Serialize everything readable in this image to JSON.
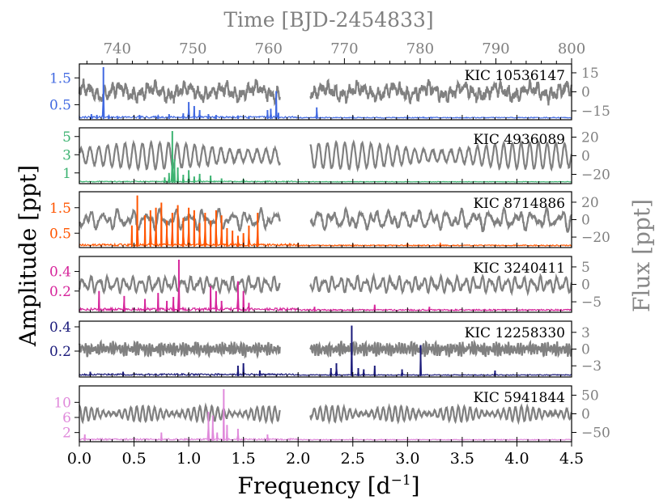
{
  "figure": {
    "top_axis_label": "Time [BJD-2454833]",
    "bottom_axis_label_main": "Frequency [d",
    "bottom_axis_label_sup": "−1",
    "bottom_axis_label_end": "]",
    "left_axis_label": "Amplitude [ppt]",
    "right_axis_label": "Flux [ppt]",
    "left_label_color": "#000000",
    "right_label_color": "#888888",
    "time_color": "#808080"
  },
  "chart_data": {
    "type": "line",
    "title": "",
    "x_frequency": {
      "label": "Frequency [d−1]",
      "range": [
        0.0,
        4.5
      ],
      "ticks": [
        "0.0",
        "0.5",
        "1.0",
        "1.5",
        "2.0",
        "2.5",
        "3.0",
        "3.5",
        "4.0",
        "4.5"
      ]
    },
    "x_time": {
      "label": "Time [BJD-2454833]",
      "range": [
        735,
        800
      ],
      "ticks": [
        "740",
        "750",
        "760",
        "770",
        "780",
        "790",
        "800"
      ],
      "gap": [
        761.5,
        765.5
      ]
    },
    "panels": [
      {
        "star": "KIC 10536147",
        "color": "#4169e1",
        "amp_ticks": [
          "1.5",
          "0.5"
        ],
        "amp_tick_values": [
          1.5,
          0.5
        ],
        "amp_range": [
          0,
          1.9
        ],
        "flux_ticks": [
          "15",
          "0",
          "−15"
        ],
        "flux_tick_values": [
          15,
          0,
          -15
        ],
        "flux_range": [
          -22,
          22
        ],
        "peaks": [
          [
            0.22,
            1.9
          ],
          [
            0.11,
            0.15
          ],
          [
            0.16,
            0.12
          ],
          [
            0.27,
            0.1
          ],
          [
            0.35,
            0.08
          ],
          [
            0.55,
            0.12
          ],
          [
            0.72,
            0.1
          ],
          [
            0.82,
            0.15
          ],
          [
            0.95,
            0.18
          ],
          [
            1.0,
            0.6
          ],
          [
            1.05,
            0.45
          ],
          [
            1.1,
            0.3
          ],
          [
            1.18,
            0.15
          ],
          [
            1.25,
            0.12
          ],
          [
            1.45,
            0.1
          ],
          [
            1.55,
            0.08
          ],
          [
            1.72,
            0.3
          ],
          [
            1.75,
            0.35
          ],
          [
            1.8,
            1.0
          ],
          [
            1.82,
            0.2
          ],
          [
            2.17,
            0.4
          ],
          [
            2.5,
            0.08
          ],
          [
            3.0,
            0.06
          ]
        ],
        "noise": 0.05,
        "light_curve": {
          "freqs": [
            1.05,
            1.8,
            0.22
          ],
          "amps": [
            3,
            2,
            3
          ],
          "noise": 3,
          "offset": 0
        }
      },
      {
        "star": "KIC 4936089",
        "color": "#3cb371",
        "amp_ticks": [
          "5",
          "3",
          "1"
        ],
        "amp_tick_values": [
          5,
          3,
          1
        ],
        "amp_range": [
          0,
          5.6
        ],
        "flux_ticks": [
          "20",
          "0",
          "−20"
        ],
        "flux_tick_values": [
          20,
          0,
          -20
        ],
        "flux_range": [
          -30,
          30
        ],
        "peaks": [
          [
            0.85,
            5.6
          ],
          [
            0.87,
            2.5
          ],
          [
            0.9,
            1.6
          ],
          [
            0.82,
            1.0
          ],
          [
            0.95,
            0.8
          ],
          [
            1.0,
            1.3
          ],
          [
            1.05,
            0.6
          ],
          [
            1.1,
            0.9
          ],
          [
            1.2,
            0.7
          ],
          [
            1.3,
            0.4
          ],
          [
            1.5,
            0.3
          ],
          [
            0.78,
            0.5
          ]
        ],
        "noise": 0.08,
        "light_curve": {
          "freqs": [
            0.86,
            0.9
          ],
          "amps": [
            10,
            4
          ],
          "noise": 1,
          "offset": 0
        }
      },
      {
        "star": "KIC 8714886",
        "color": "#ff5500",
        "amp_ticks": [
          "1.5",
          "0.5"
        ],
        "amp_tick_values": [
          1.5,
          0.5
        ],
        "amp_range": [
          0,
          2.0
        ],
        "flux_ticks": [
          "20",
          "0",
          "−20"
        ],
        "flux_tick_values": [
          20,
          0,
          -20
        ],
        "flux_range": [
          -32,
          32
        ],
        "peaks": [
          [
            0.48,
            0.8
          ],
          [
            0.53,
            1.98
          ],
          [
            0.6,
            1.2
          ],
          [
            0.65,
            1.4
          ],
          [
            0.7,
            1.5
          ],
          [
            0.75,
            1.7
          ],
          [
            0.8,
            1.0
          ],
          [
            0.85,
            1.3
          ],
          [
            0.9,
            1.6
          ],
          [
            0.95,
            1.1
          ],
          [
            1.0,
            1.5
          ],
          [
            1.05,
            1.4
          ],
          [
            1.1,
            0.9
          ],
          [
            1.15,
            1.3
          ],
          [
            1.2,
            1.0
          ],
          [
            1.25,
            1.4
          ],
          [
            1.3,
            1.2
          ],
          [
            1.35,
            0.7
          ],
          [
            1.4,
            0.6
          ],
          [
            1.5,
            0.5
          ],
          [
            1.55,
            0.8
          ],
          [
            1.63,
            1.3
          ],
          [
            1.45,
            0.4
          ],
          [
            2.0,
            0.12
          ],
          [
            2.5,
            0.08
          ],
          [
            3.0,
            0.1
          ],
          [
            3.3,
            0.1
          ]
        ],
        "noise": 0.06,
        "light_curve": {
          "freqs": [
            0.53,
            0.9,
            1.25
          ],
          "amps": [
            6,
            4,
            3
          ],
          "noise": 2,
          "offset": 0
        }
      },
      {
        "star": "KIC 3240411",
        "color": "#d6259b",
        "amp_ticks": [
          "0.4",
          "0.2"
        ],
        "amp_tick_values": [
          0.4,
          0.2
        ],
        "amp_range": [
          0,
          0.52
        ],
        "flux_ticks": [
          "5",
          "0",
          "−5"
        ],
        "flux_tick_values": [
          5,
          0,
          -5
        ],
        "flux_range": [
          -8,
          8
        ],
        "peaks": [
          [
            0.18,
            0.2
          ],
          [
            0.41,
            0.15
          ],
          [
            0.6,
            0.12
          ],
          [
            0.72,
            0.18
          ],
          [
            0.8,
            0.1
          ],
          [
            0.86,
            0.14
          ],
          [
            0.91,
            0.52
          ],
          [
            1.2,
            0.25
          ],
          [
            1.25,
            0.2
          ],
          [
            1.3,
            0.1
          ],
          [
            1.45,
            0.3
          ],
          [
            1.5,
            0.2
          ],
          [
            1.55,
            0.08
          ],
          [
            2.15,
            0.04
          ],
          [
            2.7,
            0.06
          ],
          [
            3.2,
            0.04
          ]
        ],
        "noise": 0.02,
        "light_curve": {
          "freqs": [
            0.91,
            1.45
          ],
          "amps": [
            1.5,
            0.8
          ],
          "noise": 0.3,
          "offset": 0
        }
      },
      {
        "star": "KIC 12258330",
        "color": "#1a1a7a",
        "amp_ticks": [
          "0.4",
          "0.2"
        ],
        "amp_tick_values": [
          0.4,
          0.2
        ],
        "amp_range": [
          0,
          0.42
        ],
        "flux_ticks": [
          "3",
          "0",
          "−3"
        ],
        "flux_tick_values": [
          3,
          0,
          -3
        ],
        "flux_range": [
          -5,
          5
        ],
        "peaks": [
          [
            0.1,
            0.03
          ],
          [
            0.4,
            0.03
          ],
          [
            1.5,
            0.1
          ],
          [
            1.45,
            0.08
          ],
          [
            1.65,
            0.04
          ],
          [
            2.3,
            0.06
          ],
          [
            2.35,
            0.1
          ],
          [
            2.49,
            0.41
          ],
          [
            2.55,
            0.06
          ],
          [
            2.6,
            0.05
          ],
          [
            2.7,
            0.08
          ],
          [
            2.95,
            0.05
          ],
          [
            3.12,
            0.25
          ],
          [
            3.8,
            0.04
          ]
        ],
        "noise": 0.01,
        "light_curve": {
          "freqs": [
            2.49,
            3.12
          ],
          "amps": [
            0.6,
            0.4
          ],
          "noise": 0.5,
          "offset": 0
        }
      },
      {
        "star": "KIC 5941844",
        "color": "#e08adb",
        "amp_ticks": [
          "10",
          "6",
          "2"
        ],
        "amp_tick_values": [
          10,
          6,
          2
        ],
        "amp_range": [
          0,
          13.5
        ],
        "flux_ticks": [
          "50",
          "0",
          "−50"
        ],
        "flux_tick_values": [
          50,
          0,
          -50
        ],
        "flux_range": [
          -75,
          75
        ],
        "peaks": [
          [
            0.05,
            1.5
          ],
          [
            0.75,
            2.0
          ],
          [
            1.18,
            7.5
          ],
          [
            1.22,
            6.5
          ],
          [
            1.26,
            2.0
          ],
          [
            1.32,
            13.5
          ],
          [
            1.35,
            4.0
          ],
          [
            1.45,
            3.0
          ],
          [
            1.72,
            1.5
          ]
        ],
        "noise": 0.3,
        "light_curve": {
          "freqs": [
            1.32,
            1.2
          ],
          "amps": [
            12,
            8
          ],
          "noise": 2,
          "offset": 0
        }
      }
    ]
  }
}
